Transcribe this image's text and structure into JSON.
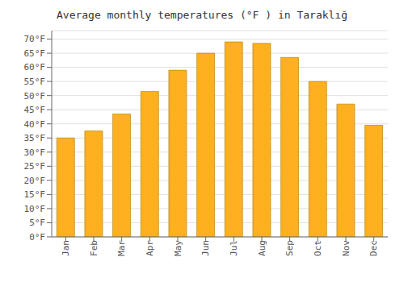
{
  "chart_data": {
    "type": "bar",
    "title": "Average monthly temperatures (°F ) in Taraklığ",
    "categories": [
      "Jan",
      "Feb",
      "Mar",
      "Apr",
      "May",
      "Jun",
      "Jul",
      "Aug",
      "Sep",
      "Oct",
      "Nov",
      "Dec"
    ],
    "values": [
      35,
      37.5,
      43.5,
      51.5,
      59,
      65,
      69,
      68.5,
      63.5,
      55,
      47,
      39.5
    ],
    "color": "#FFB020",
    "ylim": [
      0,
      73
    ],
    "yticks": [
      {
        "value": 0,
        "label": "0°F"
      },
      {
        "value": 5,
        "label": "5°F"
      },
      {
        "value": 10,
        "label": "10°F"
      },
      {
        "value": 15,
        "label": "15°F"
      },
      {
        "value": 20,
        "label": "20°F"
      },
      {
        "value": 25,
        "label": "25°F"
      },
      {
        "value": 30,
        "label": "30°F"
      },
      {
        "value": 35,
        "label": "35°F"
      },
      {
        "value": 40,
        "label": "40°F"
      },
      {
        "value": 45,
        "label": "45°F"
      },
      {
        "value": 50,
        "label": "50°F"
      },
      {
        "value": 55,
        "label": "55°F"
      },
      {
        "value": 60,
        "label": "60°F"
      },
      {
        "value": 65,
        "label": "65°F"
      },
      {
        "value": 70,
        "label": "70°F"
      }
    ],
    "grid": true
  }
}
